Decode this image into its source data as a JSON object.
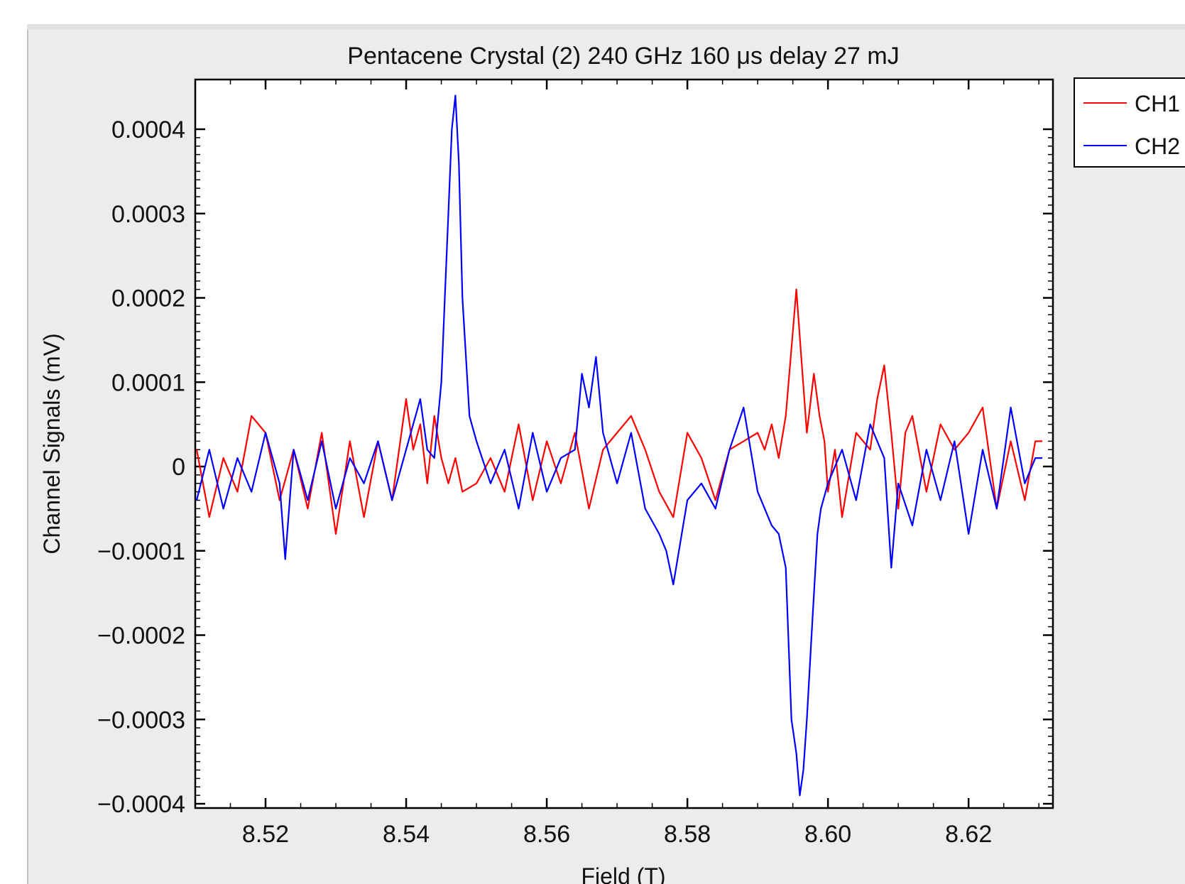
{
  "chart_data": {
    "type": "line",
    "title": "Pentacene Crystal (2) 240 GHz 160 μs delay 27 mJ",
    "xlabel": "Field (T)",
    "ylabel": "Channel Signals (mV)",
    "xlim": [
      8.51,
      8.632
    ],
    "ylim": [
      -0.0004,
      0.0004
    ],
    "x_ticks": [
      8.52,
      8.54,
      8.56,
      8.58,
      8.6,
      8.62
    ],
    "x_tick_labels": [
      "8.52",
      "8.54",
      "8.56",
      "8.58",
      "8.60",
      "8.62"
    ],
    "y_ticks": [
      0.0004,
      0.0003,
      0.0002,
      0.0001,
      0,
      -0.0001,
      -0.0002,
      -0.0003,
      -0.0004
    ],
    "y_tick_labels": [
      "0.0004",
      "0.0003",
      "0.0002",
      "0.0001",
      "0",
      "−0.0001",
      "−0.0002",
      "−0.0003",
      "−0.0004"
    ],
    "legend_position": "right, outside plot",
    "series": [
      {
        "name": "CH1",
        "color": "#ff0000",
        "x": [
          8.5102,
          8.512,
          8.514,
          8.516,
          8.518,
          8.52,
          8.522,
          8.524,
          8.526,
          8.528,
          8.53,
          8.532,
          8.534,
          8.536,
          8.538,
          8.54,
          8.541,
          8.542,
          8.543,
          8.544,
          8.545,
          8.546,
          8.547,
          8.548,
          8.55,
          8.552,
          8.554,
          8.556,
          8.558,
          8.56,
          8.562,
          8.564,
          8.566,
          8.568,
          8.57,
          8.572,
          8.574,
          8.576,
          8.578,
          8.58,
          8.582,
          8.584,
          8.586,
          8.588,
          8.59,
          8.591,
          8.592,
          8.593,
          8.594,
          8.5948,
          8.5955,
          8.5962,
          8.597,
          8.598,
          8.5988,
          8.5995,
          8.6,
          8.601,
          8.602,
          8.604,
          8.606,
          8.607,
          8.608,
          8.609,
          8.61,
          8.611,
          8.612,
          8.614,
          8.616,
          8.618,
          8.62,
          8.622,
          8.624,
          8.626,
          8.628,
          8.6295,
          8.6305
        ],
        "values": [
          2e-05,
          -6e-05,
          1e-05,
          -3e-05,
          6e-05,
          4e-05,
          -4e-05,
          2e-05,
          -5e-05,
          4e-05,
          -8e-05,
          3e-05,
          -6e-05,
          3e-05,
          -4e-05,
          8e-05,
          2e-05,
          5e-05,
          -2e-05,
          6e-05,
          1e-05,
          -2e-05,
          1e-05,
          -3e-05,
          -2e-05,
          1e-05,
          -3e-05,
          5e-05,
          -4e-05,
          3e-05,
          -2e-05,
          4e-05,
          -5e-05,
          2e-05,
          4e-05,
          6e-05,
          2e-05,
          -3e-05,
          -6e-05,
          4e-05,
          1e-05,
          -4e-05,
          2e-05,
          3e-05,
          4e-05,
          2e-05,
          5e-05,
          1e-05,
          6e-05,
          0.00014,
          0.00021,
          0.00013,
          4e-05,
          0.00011,
          6e-05,
          3e-05,
          -3e-05,
          2e-05,
          -6e-05,
          4e-05,
          2e-05,
          8e-05,
          0.00012,
          4e-05,
          -5e-05,
          4e-05,
          6e-05,
          -3e-05,
          5e-05,
          2e-05,
          4e-05,
          7e-05,
          -5e-05,
          3e-05,
          -4e-05,
          3e-05,
          3e-05
        ]
      },
      {
        "name": "CH2",
        "color": "#0000ff",
        "x": [
          8.5102,
          8.512,
          8.514,
          8.516,
          8.518,
          8.52,
          8.522,
          8.5228,
          8.524,
          8.526,
          8.528,
          8.53,
          8.532,
          8.534,
          8.536,
          8.538,
          8.54,
          8.542,
          8.543,
          8.544,
          8.545,
          8.5455,
          8.546,
          8.5465,
          8.547,
          8.5475,
          8.548,
          8.549,
          8.55,
          8.552,
          8.554,
          8.556,
          8.558,
          8.56,
          8.562,
          8.564,
          8.565,
          8.566,
          8.567,
          8.568,
          8.57,
          8.572,
          8.574,
          8.576,
          8.577,
          8.578,
          8.58,
          8.582,
          8.584,
          8.586,
          8.588,
          8.59,
          8.592,
          8.593,
          8.594,
          8.5948,
          8.5955,
          8.596,
          8.5965,
          8.597,
          8.5978,
          8.5985,
          8.599,
          8.6,
          8.602,
          8.604,
          8.606,
          8.608,
          8.609,
          8.61,
          8.612,
          8.614,
          8.616,
          8.618,
          8.62,
          8.622,
          8.624,
          8.626,
          8.628,
          8.6295,
          8.6305
        ],
        "values": [
          -4e-05,
          2e-05,
          -5e-05,
          1e-05,
          -3e-05,
          4e-05,
          -2e-05,
          -0.00011,
          2e-05,
          -4e-05,
          3e-05,
          -5e-05,
          1e-05,
          -2e-05,
          3e-05,
          -4e-05,
          2e-05,
          8e-05,
          2e-05,
          1e-05,
          0.0001,
          0.0002,
          0.0003,
          0.0004,
          0.00044,
          0.00036,
          0.0002,
          6e-05,
          3e-05,
          -2e-05,
          2e-05,
          -5e-05,
          4e-05,
          -3e-05,
          1e-05,
          2e-05,
          0.00011,
          7e-05,
          0.00013,
          4e-05,
          -2e-05,
          4e-05,
          -5e-05,
          -8e-05,
          -0.0001,
          -0.00014,
          -4e-05,
          -2e-05,
          -5e-05,
          2e-05,
          7e-05,
          -3e-05,
          -7e-05,
          -8e-05,
          -0.00012,
          -0.0003,
          -0.00034,
          -0.00039,
          -0.00036,
          -0.0003,
          -0.00018,
          -8e-05,
          -5e-05,
          -2e-05,
          2e-05,
          -4e-05,
          5e-05,
          1e-05,
          -0.00012,
          -2e-05,
          -7e-05,
          2e-05,
          -4e-05,
          3e-05,
          -8e-05,
          2e-05,
          -5e-05,
          7e-05,
          -2e-05,
          1e-05,
          1e-05
        ]
      }
    ]
  }
}
